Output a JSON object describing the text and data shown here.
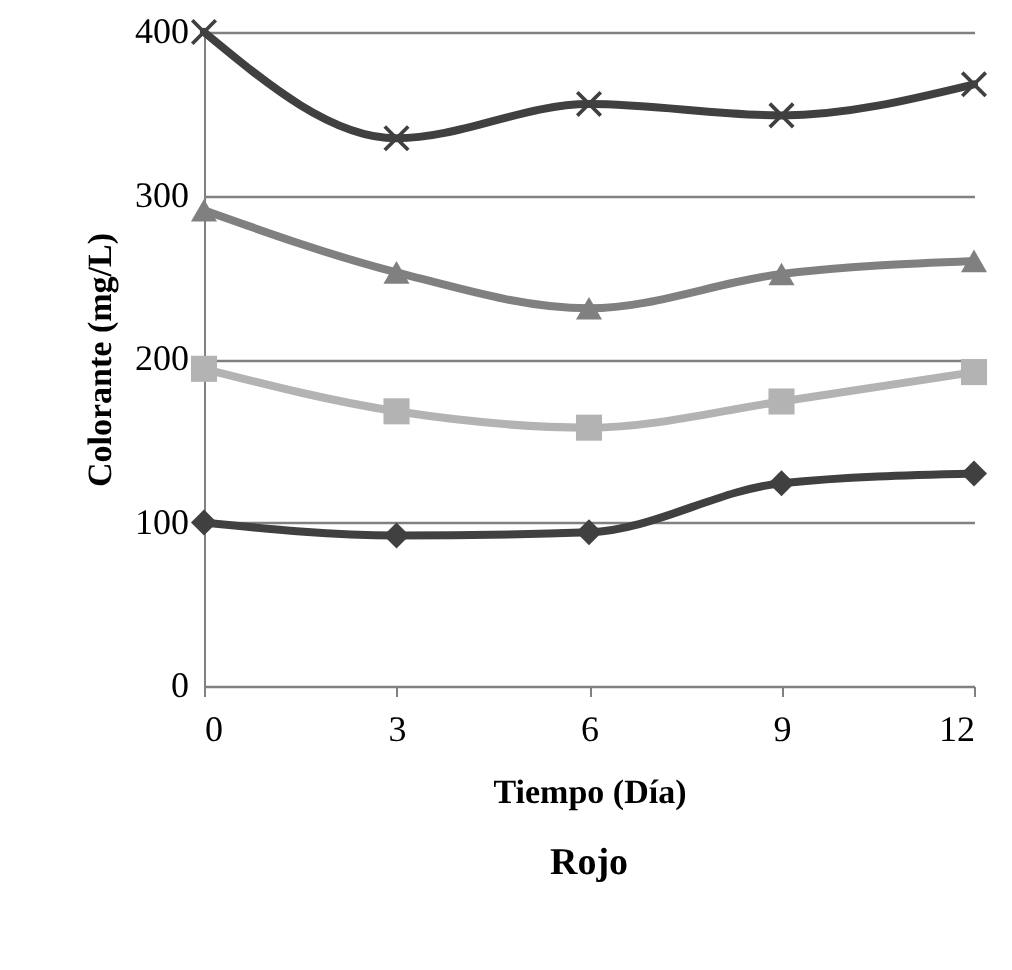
{
  "chart_data": {
    "type": "line",
    "title": "Rojo",
    "xlabel": "Tiempo (Día)",
    "ylabel": "Colorante (mg/L)",
    "x": [
      0,
      3,
      6,
      9,
      12
    ],
    "xlim": [
      0,
      12
    ],
    "xticks": [
      0,
      3,
      6,
      9,
      12
    ],
    "ylim": [
      0,
      400
    ],
    "yticks": [
      0,
      100,
      200,
      300,
      400
    ],
    "grid": "y",
    "series": [
      {
        "color": "#404040",
        "marker": "cross",
        "values": [
          400,
          335,
          356,
          349,
          368
        ]
      },
      {
        "color": "#808080",
        "marker": "triangle",
        "values": [
          291,
          253,
          231,
          252,
          260
        ]
      },
      {
        "color": "#b3b3b3",
        "marker": "square",
        "values": [
          194,
          168,
          158,
          174,
          192
        ]
      },
      {
        "color": "#404040",
        "marker": "diamond",
        "values": [
          100,
          92,
          94,
          124,
          130
        ]
      }
    ]
  }
}
